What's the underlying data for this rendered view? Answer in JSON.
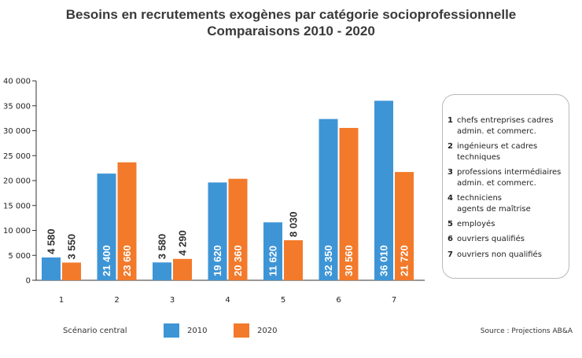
{
  "colors": {
    "series_2010": "#3e95d6",
    "series_2020": "#f27a2a",
    "axis": "#333333"
  },
  "chart_data": {
    "type": "bar",
    "title": "Besoins en recrutements exogènes par catégorie socioprofessionnelle",
    "subtitle": "Comparaisons 2010 - 2020",
    "categories": [
      "1",
      "2",
      "3",
      "4",
      "5",
      "6",
      "7"
    ],
    "ylim": [
      0,
      40000
    ],
    "yticks": [
      "0",
      "5 000",
      "10 000",
      "15 000",
      "20 000",
      "25 000",
      "30 000",
      "35 000",
      "40 000"
    ],
    "grid": false,
    "series": [
      {
        "name": "2010",
        "values": [
          4580,
          21400,
          3580,
          19620,
          11620,
          32350,
          36010
        ],
        "labels": [
          "4 580",
          "21 400",
          "3 580",
          "19 620",
          "11 620",
          "32 350",
          "36 010"
        ]
      },
      {
        "name": "2020",
        "values": [
          3550,
          23660,
          4290,
          20360,
          8030,
          30560,
          21720
        ],
        "labels": [
          "3 550",
          "23 660",
          "4 290",
          "20 360",
          "8 030",
          "30 560",
          "21 720"
        ]
      }
    ],
    "legend_position": "bottom"
  },
  "legend": {
    "scenario_label": "Scénario central",
    "series_2010_label": "2010",
    "series_2020_label": "2020",
    "categories": [
      {
        "num": "1",
        "label": "chefs entreprises cadres\nadmin. et commerc."
      },
      {
        "num": "2",
        "label": "ingénieurs et cadres\ntechniques"
      },
      {
        "num": "3",
        "label": "professions intermédiaires\nadmin. et commerc."
      },
      {
        "num": "4",
        "label": "techniciens\nagents de maîtrise"
      },
      {
        "num": "5",
        "label": "employés"
      },
      {
        "num": "6",
        "label": "ouvriers qualifiés"
      },
      {
        "num": "7",
        "label": "ouvriers non qualifiés"
      }
    ]
  },
  "source": "Source : Projections AB&A"
}
